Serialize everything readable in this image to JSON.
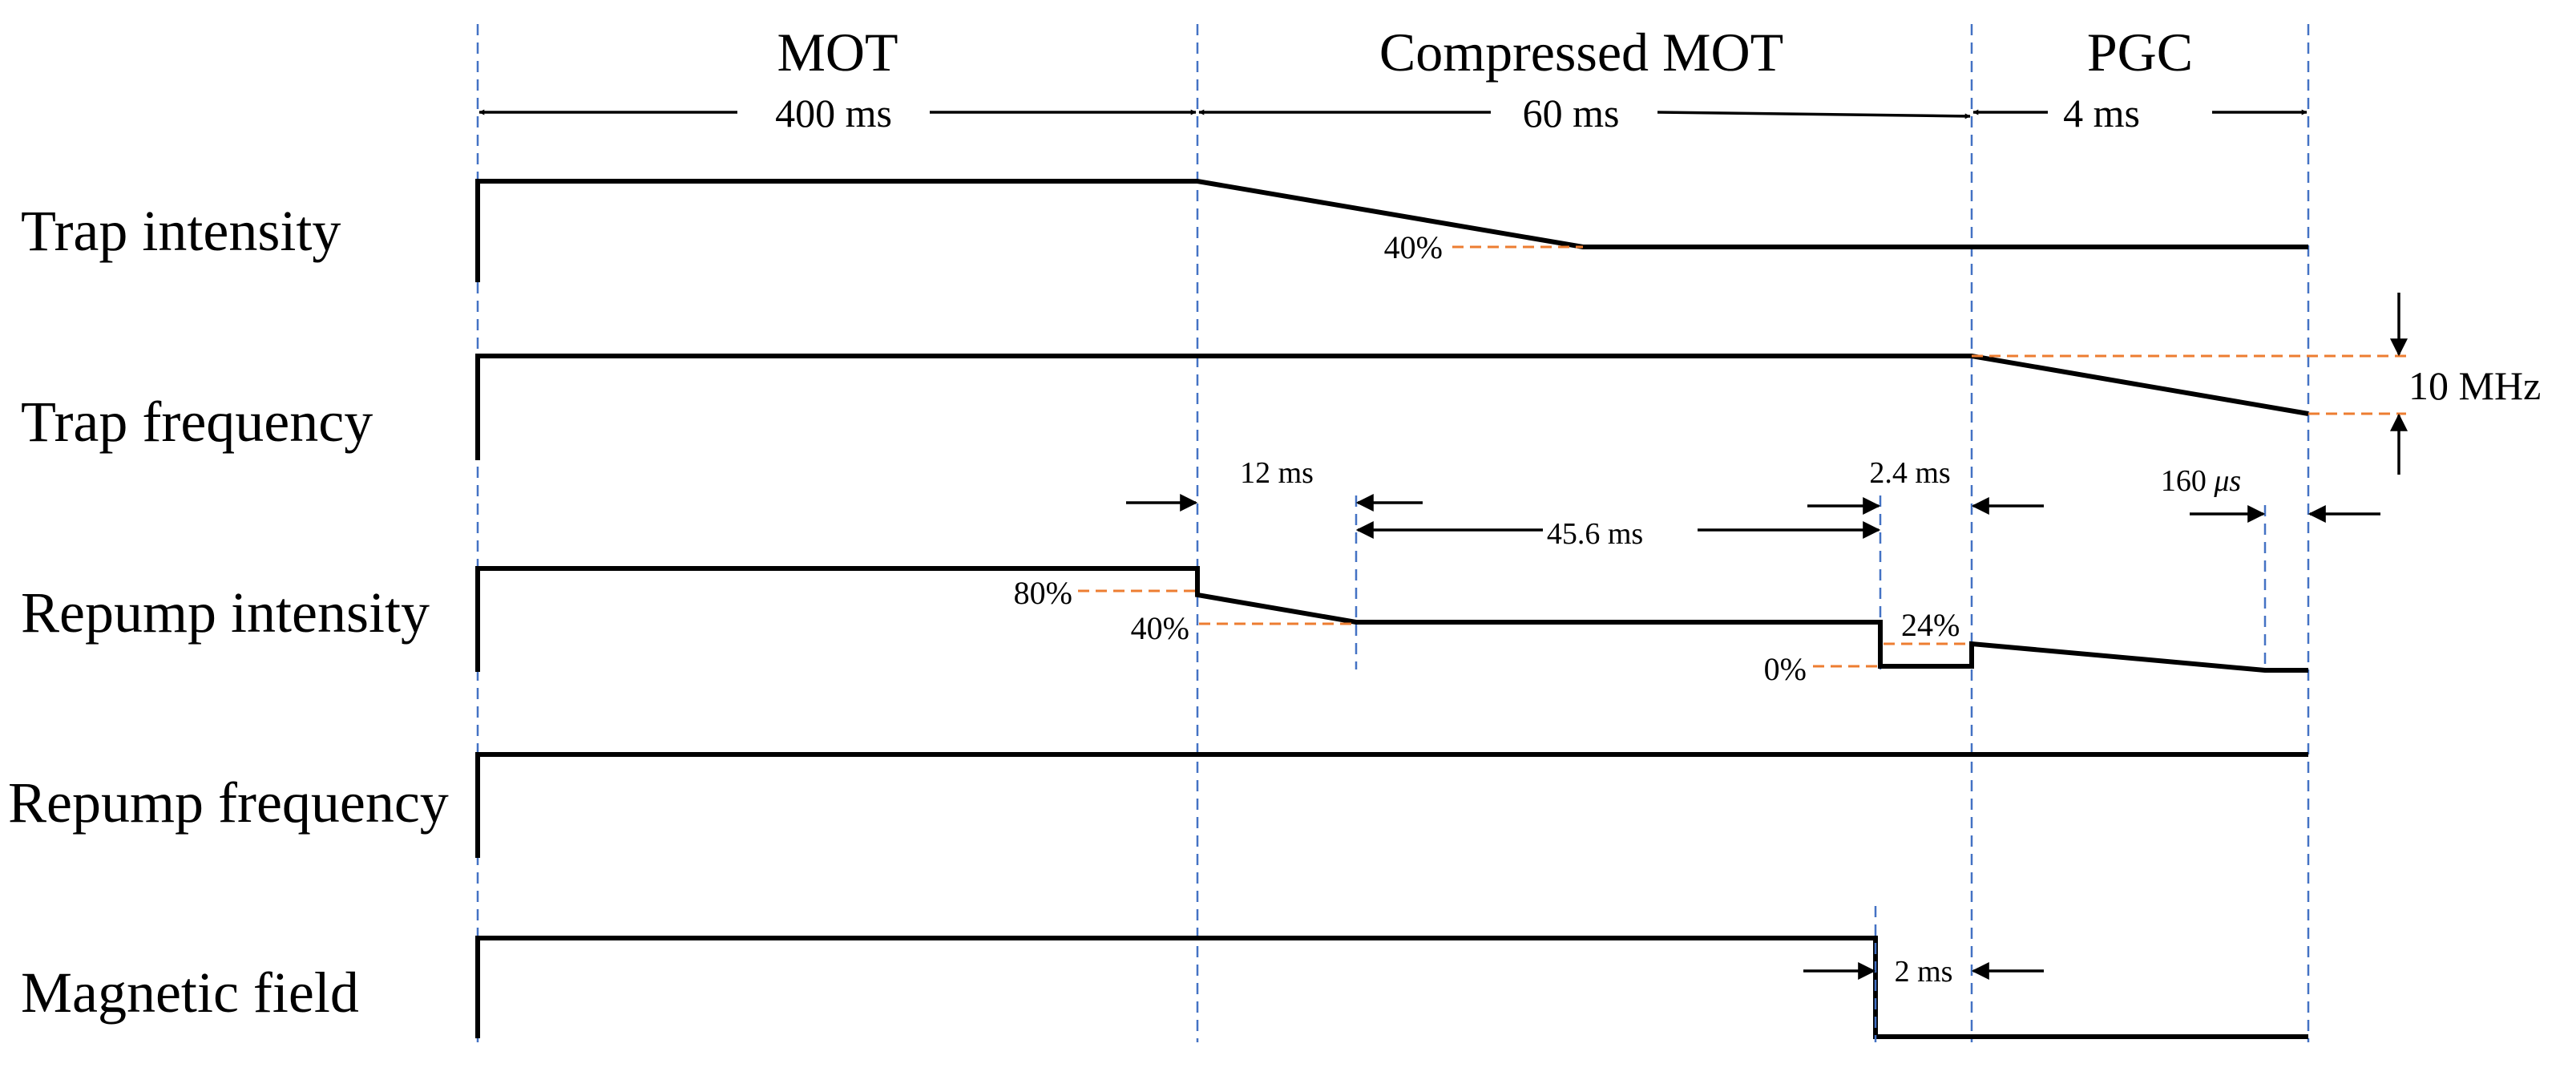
{
  "phases": [
    {
      "name": "MOT",
      "duration": "400 ms"
    },
    {
      "name": "Compressed MOT",
      "duration": "60 ms"
    },
    {
      "name": "PGC",
      "duration": "4 ms"
    }
  ],
  "rows": {
    "trap_intensity": "Trap intensity",
    "trap_frequency": "Trap frequency",
    "repump_intensity": "Repump intensity",
    "repump_frequency": "Repump frequency",
    "magnetic_field": "Magnetic field"
  },
  "annotations": {
    "trap_intensity_level": "40%",
    "trap_frequency_shift": "10 MHz",
    "repump_ramp_duration": "12 ms",
    "repump_hold_duration": "45.6 ms",
    "repump_off_duration": "2.4 ms",
    "pgc_final_duration": "160 ",
    "pgc_final_unit": "μs",
    "repump_level_80": "80%",
    "repump_level_40": "40%",
    "repump_level_0": "0%",
    "repump_level_24": "24%",
    "field_off_duration": "2 ms"
  },
  "colors": {
    "signal": "#000000",
    "phase_divider": "#4472c4",
    "level_marker": "#ed7d31"
  }
}
